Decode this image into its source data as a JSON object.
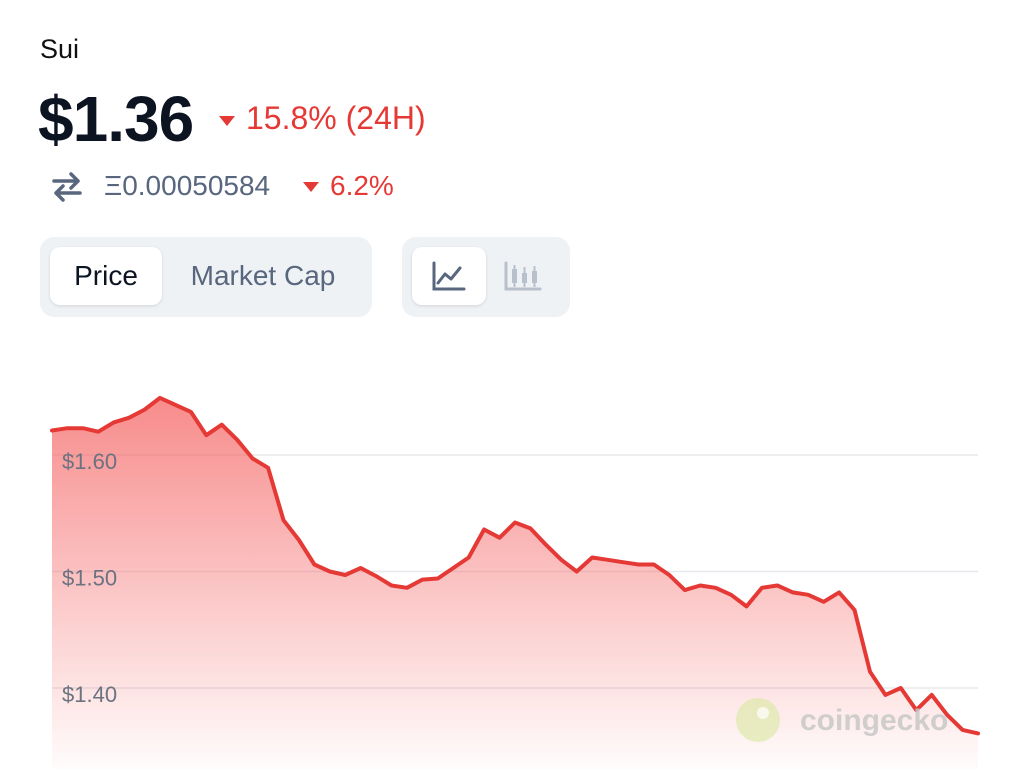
{
  "header": {
    "coin_name": "Sui",
    "price": "$1.36",
    "change_24h": "15.8% (24H)",
    "eth_price": "Ξ0.00050584",
    "eth_change": "6.2%"
  },
  "tabs": [
    "Price",
    "Market Cap"
  ],
  "watermark": "coingecko",
  "chart_data": {
    "type": "area",
    "color": "#e53935",
    "values": [
      1.621,
      1.623,
      1.623,
      1.62,
      1.628,
      1.632,
      1.639,
      1.649,
      1.643,
      1.637,
      1.617,
      1.626,
      1.613,
      1.597,
      1.589,
      1.544,
      1.527,
      1.506,
      1.5,
      1.497,
      1.503,
      1.496,
      1.488,
      1.486,
      1.493,
      1.494,
      1.503,
      1.512,
      1.536,
      1.529,
      1.542,
      1.537,
      1.523,
      1.51,
      1.5,
      1.512,
      1.51,
      1.508,
      1.506,
      1.506,
      1.497,
      1.484,
      1.488,
      1.486,
      1.48,
      1.47,
      1.486,
      1.488,
      1.482,
      1.48,
      1.474,
      1.482,
      1.467,
      1.414,
      1.394,
      1.4,
      1.381,
      1.394,
      1.377,
      1.364,
      1.361
    ],
    "ylim": [
      1.33,
      1.7
    ],
    "yticks": [
      {
        "value": 1.4,
        "label": "$1.40"
      },
      {
        "value": 1.5,
        "label": "$1.50"
      },
      {
        "value": 1.6,
        "label": "$1.60"
      }
    ],
    "grid": true
  }
}
